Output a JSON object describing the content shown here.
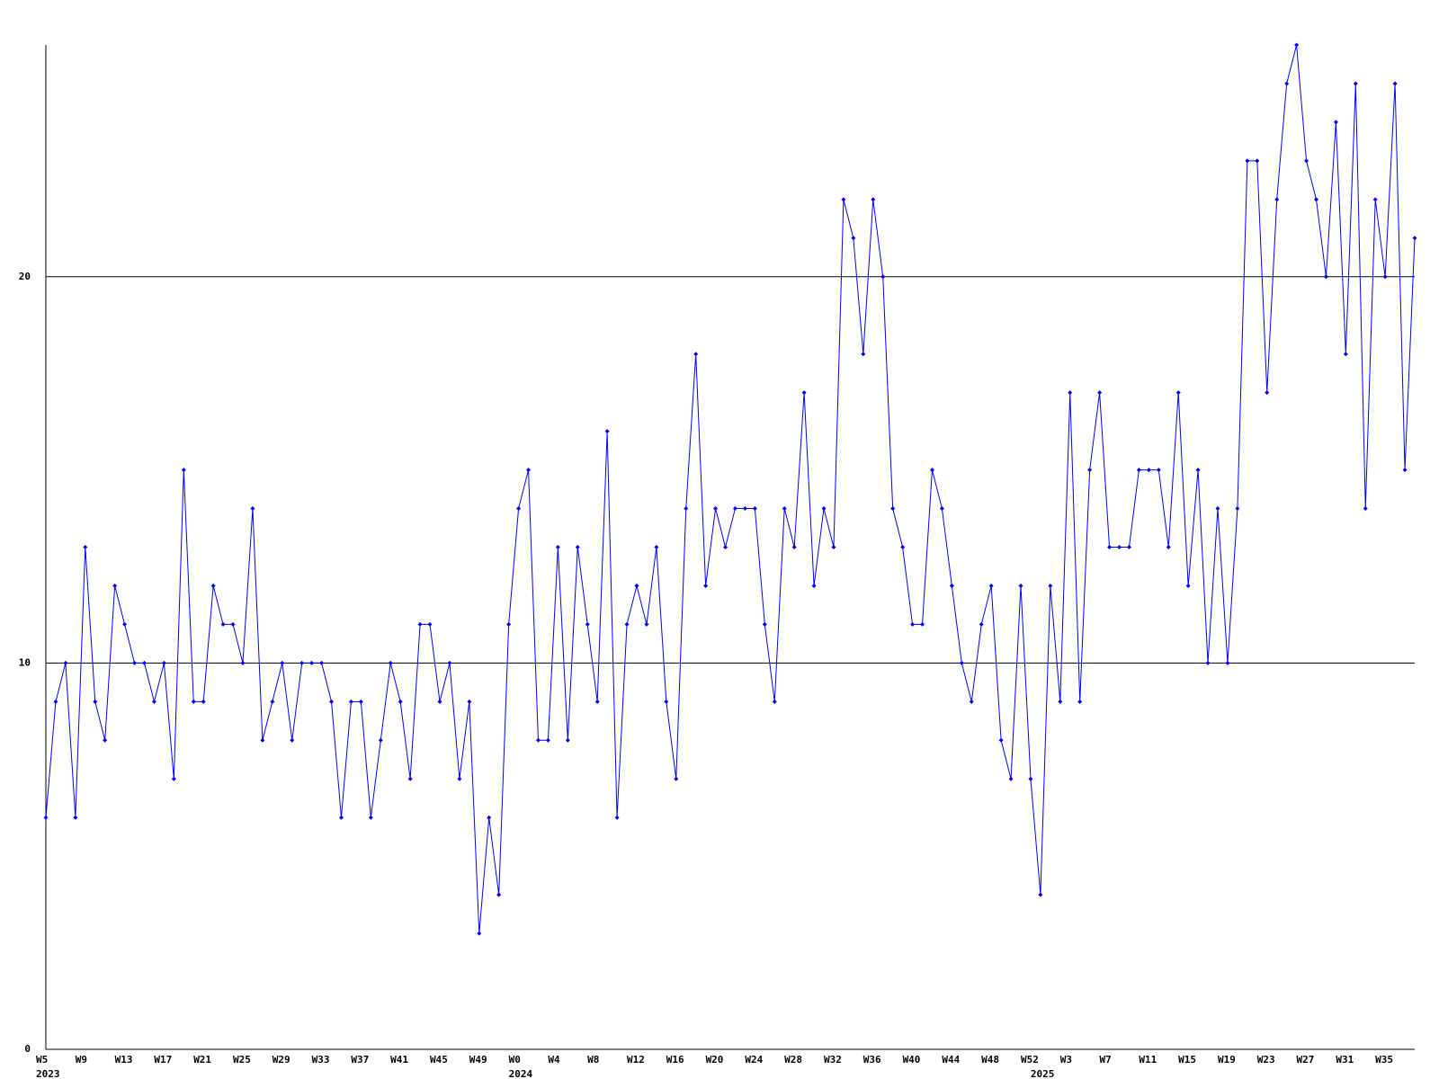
{
  "chart_data": {
    "type": "line",
    "categories": [
      "W5",
      null,
      null,
      null,
      "W9",
      null,
      null,
      null,
      "W13",
      null,
      null,
      null,
      "W17",
      null,
      null,
      null,
      "W21",
      null,
      null,
      null,
      "W25",
      null,
      null,
      null,
      "W29",
      null,
      null,
      null,
      "W33",
      null,
      null,
      null,
      "W37",
      null,
      null,
      null,
      "W41",
      null,
      null,
      null,
      "W45",
      null,
      null,
      null,
      "W49",
      null,
      null,
      null,
      "W0",
      null,
      null,
      null,
      "W4",
      null,
      null,
      null,
      "W8",
      null,
      null,
      null,
      "W12",
      null,
      null,
      null,
      "W16",
      null,
      null,
      null,
      "W20",
      null,
      null,
      null,
      "W24",
      null,
      null,
      null,
      "W28",
      null,
      null,
      null,
      "W32",
      null,
      null,
      null,
      "W36",
      null,
      null,
      null,
      "W40",
      null,
      null,
      null,
      "W44",
      null,
      null,
      null,
      "W48",
      null,
      null,
      null,
      "W52",
      null,
      null,
      null,
      "W3",
      null,
      null,
      null,
      "W7",
      null,
      null,
      null,
      "W11",
      null,
      null,
      null,
      "W15",
      null,
      null,
      null,
      "W19",
      null,
      null,
      null,
      "W23",
      null,
      null,
      null,
      "W27",
      null,
      null,
      null,
      "W31",
      null,
      null,
      null,
      "W35",
      null,
      null,
      null
    ],
    "year_labels": [
      "2023",
      null,
      null,
      null,
      null,
      null,
      null,
      null,
      null,
      null,
      null,
      null,
      null,
      null,
      null,
      null,
      null,
      null,
      null,
      null,
      null,
      null,
      null,
      null,
      null,
      null,
      null,
      null,
      null,
      null,
      null,
      null,
      null,
      null,
      null,
      null,
      null,
      null,
      null,
      null,
      null,
      null,
      null,
      null,
      null,
      null,
      null,
      null,
      "2024",
      null,
      null,
      null,
      null,
      null,
      null,
      null,
      null,
      null,
      null,
      null,
      null,
      null,
      null,
      null,
      null,
      null,
      null,
      null,
      null,
      null,
      null,
      null,
      null,
      null,
      null,
      null,
      null,
      null,
      null,
      null,
      null,
      null,
      null,
      null,
      null,
      null,
      null,
      null,
      null,
      null,
      null,
      null,
      null,
      null,
      null,
      null,
      null,
      null,
      null,
      null,
      null,
      "2025",
      null,
      null,
      null,
      null,
      null,
      null,
      null,
      null,
      null,
      null,
      null,
      null,
      null,
      null,
      null,
      null,
      null,
      null,
      null,
      null,
      null,
      null,
      null,
      null,
      null,
      null,
      null,
      null,
      null,
      null,
      null,
      null,
      null,
      null,
      null,
      null,
      null
    ],
    "series": [
      {
        "color": "#0000ff",
        "values": [
          6,
          9,
          10,
          6,
          13,
          9,
          8,
          12,
          11,
          10,
          10,
          9,
          10,
          7,
          15,
          9,
          9,
          12,
          11,
          11,
          10,
          14,
          8,
          9,
          10,
          8,
          10,
          10,
          10,
          9,
          6,
          9,
          9,
          6,
          8,
          10,
          9,
          7,
          11,
          11,
          9,
          10,
          7,
          9,
          3,
          6,
          4,
          11,
          14,
          15,
          8,
          8,
          13,
          8,
          13,
          11,
          9,
          16,
          6,
          11,
          12,
          11,
          13,
          9,
          7,
          14,
          18,
          12,
          14,
          13,
          14,
          14,
          14,
          11,
          9,
          14,
          13,
          17,
          12,
          14,
          13,
          22,
          21,
          18,
          22,
          20,
          14,
          13,
          11,
          11,
          15,
          14,
          12,
          10,
          9,
          11,
          12,
          8,
          7,
          12,
          7,
          4,
          12,
          9,
          17,
          9,
          15,
          17,
          13,
          13,
          13,
          15,
          15,
          15,
          13,
          17,
          12,
          15,
          10,
          14,
          10,
          14,
          23,
          23,
          17,
          22,
          25,
          26,
          23,
          22,
          20,
          24,
          18,
          25,
          14,
          22,
          20,
          25,
          15,
          21
        ]
      }
    ],
    "ylim": [
      0,
      26
    ],
    "yticks": [
      0,
      10,
      20
    ],
    "grid": true
  }
}
